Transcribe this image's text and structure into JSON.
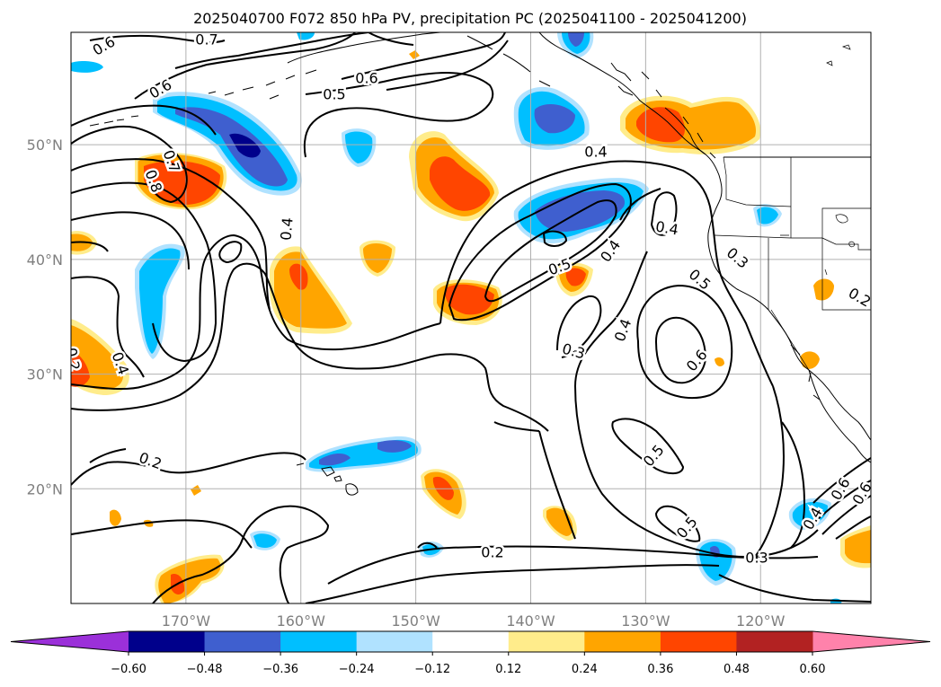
{
  "title": "2025040700 F072 850 hPa PV, precipitation PC (2025041100 - 2025041200)",
  "map": {
    "lon_ticks": [
      {
        "lon": -170,
        "label": "170°W"
      },
      {
        "lon": -160,
        "label": "160°W"
      },
      {
        "lon": -150,
        "label": "150°W"
      },
      {
        "lon": -140,
        "label": "140°W"
      },
      {
        "lon": -130,
        "label": "130°W"
      },
      {
        "lon": -120,
        "label": "120°W"
      }
    ],
    "lat_ticks": [
      {
        "lat": 20,
        "label": "20°N"
      },
      {
        "lat": 30,
        "label": "30°N"
      },
      {
        "lat": 40,
        "label": "40°N"
      },
      {
        "lat": 50,
        "label": "50°N"
      }
    ],
    "extent": {
      "lon_min": -180,
      "lon_max": -110.4,
      "lat_min": 10,
      "lat_max": 59.8
    },
    "gridlines": true
  },
  "colorbar": {
    "colors": [
      "#9b30d9",
      "#00008b",
      "#3f5fcf",
      "#00bfff",
      "#b0e2ff",
      "#ffffff",
      "#ffec8b",
      "#ffa500",
      "#ff4500",
      "#b22222",
      "#ff82ab"
    ],
    "levels": [
      {
        "value": -0.6,
        "label": "−0.60"
      },
      {
        "value": -0.48,
        "label": "−0.48"
      },
      {
        "value": -0.36,
        "label": "−0.36"
      },
      {
        "value": -0.24,
        "label": "−0.24"
      },
      {
        "value": -0.12,
        "label": "−0.12"
      },
      {
        "value": 0.12,
        "label": "0.12"
      },
      {
        "value": 0.24,
        "label": "0.24"
      },
      {
        "value": 0.36,
        "label": "0.36"
      },
      {
        "value": 0.48,
        "label": "0.48"
      },
      {
        "value": 0.6,
        "label": "0.60"
      }
    ],
    "extend": "both"
  },
  "contour_labels": [
    "0.6",
    "0.7",
    "0.6",
    "0.6",
    "0.5",
    "0.7",
    "0.8",
    "0.4",
    "0.4",
    "0.5",
    "0.4",
    "0.4",
    "0.3",
    "0.5",
    "0.6",
    "0.3",
    "0.4",
    "0.5",
    "0.5",
    "0.3",
    "0.2",
    "0.2",
    "0.2",
    "0.6",
    "0.4",
    "0.6",
    "0.2",
    "0.4"
  ]
}
